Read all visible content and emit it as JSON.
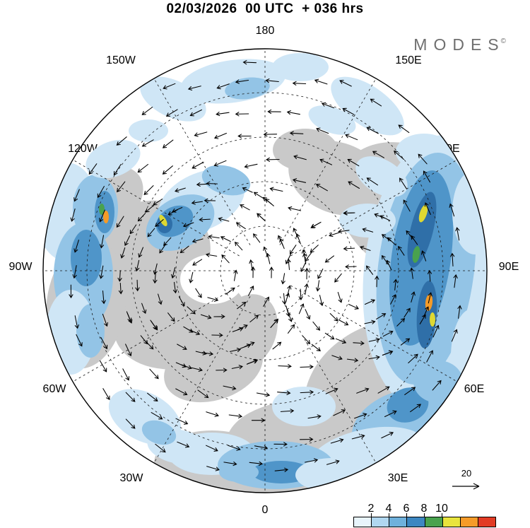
{
  "header": {
    "title": "02/03/2026  00 UTC  + 036 hrs"
  },
  "branding": {
    "logo": "MODES",
    "copyright": "©"
  },
  "map": {
    "lon_labels": [
      "180",
      "150W",
      "120W",
      "90W",
      "60W",
      "30W",
      "0",
      "30E",
      "60E",
      "90E",
      "120E",
      "150E"
    ]
  },
  "legend": {
    "tick_labels": [
      "2",
      "4",
      "6",
      "8",
      "10"
    ],
    "cell_colors": [
      "#e8f4fb",
      "#b0d7f0",
      "#6fb1dc",
      "#3c87c1",
      "#49a24e",
      "#e8e43c",
      "#f59b28",
      "#e23b24"
    ],
    "reference_arrow_label": "20"
  },
  "palette": {
    "land": "#c9c9c9",
    "light": "#cfe6f6",
    "mid": "#93c4e6",
    "deep": "#4f95c9",
    "dark": "#2f6fa8",
    "green": "#49a24e",
    "yellow": "#ded832",
    "orange": "#f59b28"
  }
}
